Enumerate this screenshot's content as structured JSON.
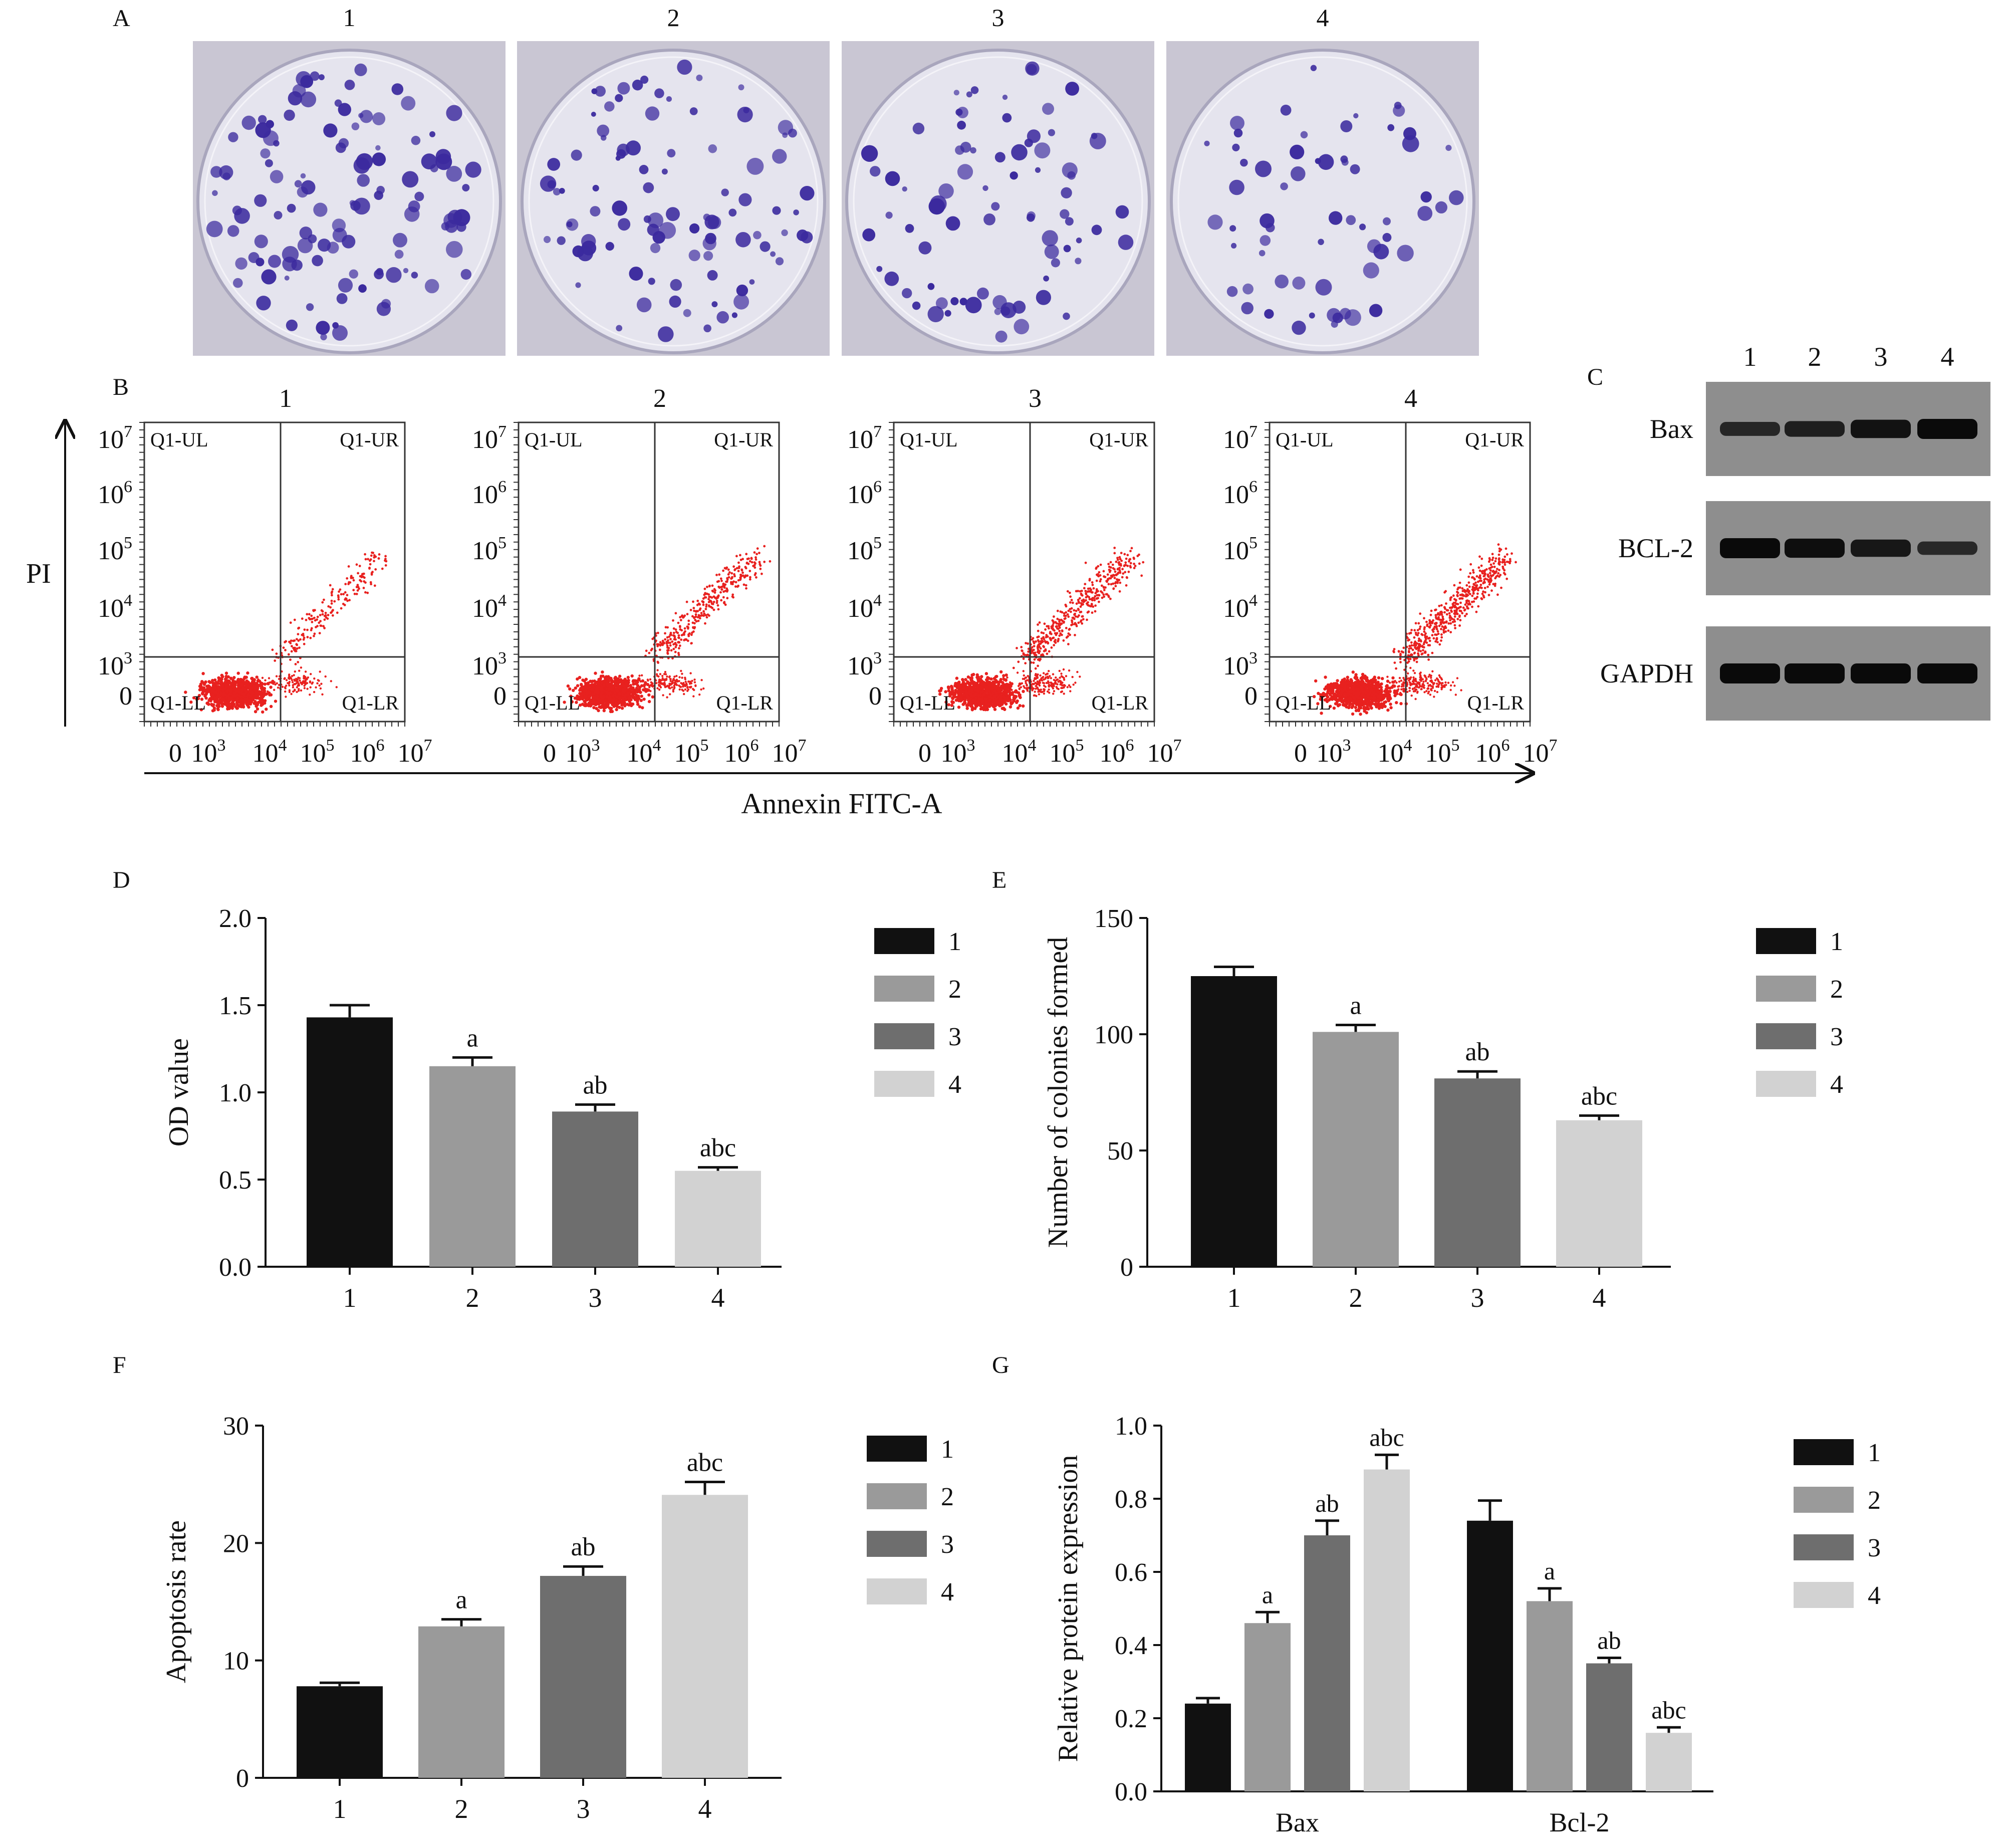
{
  "panels": {
    "A": {
      "letter": "A",
      "dishes": [
        {
          "label": "1",
          "colonies": 120,
          "seed": 11
        },
        {
          "label": "2",
          "colonies": 98,
          "seed": 23
        },
        {
          "label": "3",
          "colonies": 80,
          "seed": 37
        },
        {
          "label": "4",
          "colonies": 62,
          "seed": 53
        }
      ]
    },
    "B": {
      "letter": "B",
      "y_title": "PI",
      "x_title": "Annexin FITC-A",
      "quadrant_labels": {
        "ul": "Q1-UL",
        "ur": "Q1-UR",
        "ll": "Q1-LL",
        "lr": "Q1-LR"
      },
      "y_ticks": [
        {
          "base": "10",
          "exp": "7"
        },
        {
          "base": "10",
          "exp": "6"
        },
        {
          "base": "10",
          "exp": "5"
        },
        {
          "base": "10",
          "exp": "4"
        },
        {
          "base": "10",
          "exp": "3"
        },
        {
          "base": "0",
          "exp": ""
        }
      ],
      "x_ticks": [
        {
          "base": "0",
          "exp": ""
        },
        {
          "base": "10",
          "exp": "3"
        },
        {
          "base": "10",
          "exp": "4"
        },
        {
          "base": "10",
          "exp": "5"
        },
        {
          "base": "10",
          "exp": "6"
        },
        {
          "base": "10",
          "exp": "7"
        }
      ],
      "plots": [
        {
          "label": "1",
          "seed": 5
        },
        {
          "label": "2",
          "seed": 17
        },
        {
          "label": "3",
          "seed": 29
        },
        {
          "label": "4",
          "seed": 41
        }
      ]
    },
    "C": {
      "letter": "C",
      "lanes": [
        "1",
        "2",
        "3",
        "4"
      ],
      "blots": [
        {
          "label": "Bax",
          "intensity": [
            0.45,
            0.6,
            0.85,
            1.0
          ]
        },
        {
          "label": "BCL-2",
          "intensity": [
            1.0,
            0.92,
            0.75,
            0.4
          ]
        },
        {
          "label": "GAPDH",
          "intensity": [
            1.0,
            1.0,
            1.0,
            1.0
          ]
        }
      ]
    }
  },
  "colors": {
    "g1": "#111111",
    "g2": "#9a9a9a",
    "g3": "#6e6e6e",
    "g4": "#d2d2d2",
    "dots": "#e8211f",
    "dish": "#3b2a9e"
  },
  "legend": [
    "1",
    "2",
    "3",
    "4"
  ],
  "chart_data": [
    {
      "panel": "D",
      "type": "bar",
      "categories": [
        "1",
        "2",
        "3",
        "4"
      ],
      "values": [
        1.43,
        1.15,
        0.89,
        0.55
      ],
      "errors": [
        0.07,
        0.05,
        0.04,
        0.02
      ],
      "annotations": [
        "",
        "a",
        "ab",
        "abc"
      ],
      "ylabel": "OD value",
      "xlabel": "",
      "ylim": [
        0,
        2.0
      ],
      "yticks": [
        "0.0",
        "0.5",
        "1.0",
        "1.5",
        "2.0"
      ]
    },
    {
      "panel": "E",
      "type": "bar",
      "categories": [
        "1",
        "2",
        "3",
        "4"
      ],
      "values": [
        125,
        101,
        81,
        63
      ],
      "errors": [
        4,
        3,
        3,
        2
      ],
      "annotations": [
        "",
        "a",
        "ab",
        "abc"
      ],
      "ylabel": "Number of colonies formed",
      "xlabel": "",
      "ylim": [
        0,
        150
      ],
      "yticks": [
        "0",
        "50",
        "100",
        "150"
      ]
    },
    {
      "panel": "F",
      "type": "bar",
      "categories": [
        "1",
        "2",
        "3",
        "4"
      ],
      "values": [
        7.8,
        12.9,
        17.2,
        24.1
      ],
      "errors": [
        0.3,
        0.6,
        0.8,
        1.1
      ],
      "annotations": [
        "",
        "a",
        "ab",
        "abc"
      ],
      "ylabel": "Apoptosis rate",
      "xlabel": "",
      "ylim": [
        0,
        30
      ],
      "yticks": [
        "0",
        "10",
        "20",
        "30"
      ]
    },
    {
      "panel": "G",
      "type": "bar",
      "categories": [
        "Bax",
        "Bcl-2"
      ],
      "series": [
        {
          "name": "1",
          "values": [
            0.24,
            0.74
          ],
          "errors": [
            0.015,
            0.055
          ],
          "annotations": [
            "",
            ""
          ]
        },
        {
          "name": "2",
          "values": [
            0.46,
            0.52
          ],
          "errors": [
            0.03,
            0.035
          ],
          "annotations": [
            "a",
            "a"
          ]
        },
        {
          "name": "3",
          "values": [
            0.7,
            0.35
          ],
          "errors": [
            0.04,
            0.015
          ],
          "annotations": [
            "ab",
            "ab"
          ]
        },
        {
          "name": "4",
          "values": [
            0.88,
            0.16
          ],
          "errors": [
            0.04,
            0.015
          ],
          "annotations": [
            "abc",
            "abc"
          ]
        }
      ],
      "ylabel": "Relative protein expression",
      "xlabel": "",
      "ylim": [
        0,
        1.0
      ],
      "yticks": [
        "0.0",
        "0.2",
        "0.4",
        "0.6",
        "0.8",
        "1.0"
      ]
    }
  ]
}
